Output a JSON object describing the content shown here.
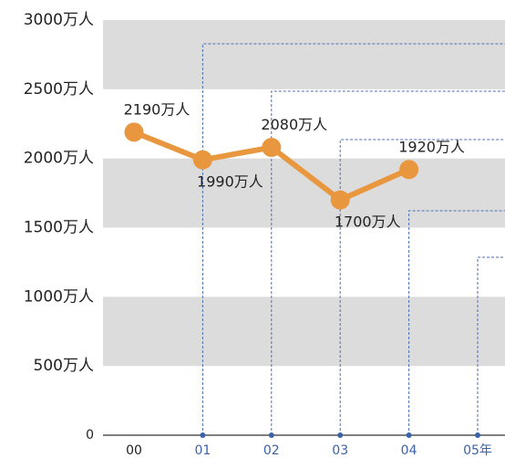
{
  "chart_data": {
    "type": "line",
    "categories": [
      "00",
      "01",
      "02",
      "03",
      "04",
      "05年"
    ],
    "series": [
      {
        "color": "#e8973e",
        "values": [
          2190,
          1990,
          2080,
          1700,
          1920,
          null
        ],
        "value_labels": [
          "2190万人",
          "1990万人",
          "2080万人",
          "1700万人",
          "1920万人",
          null
        ]
      }
    ],
    "ylim": [
      0,
      3000
    ],
    "yticks": [
      0,
      {
        "value": 500,
        "label": "500万人"
      },
      {
        "value": 1000,
        "label": "1000万人"
      },
      {
        "value": 1500,
        "label": "1500万人"
      },
      {
        "value": 2000,
        "label": "2000万人"
      },
      {
        "value": 2500,
        "label": "2500万人"
      },
      {
        "value": 3000,
        "label": "3000万人"
      }
    ],
    "grid": true
  }
}
